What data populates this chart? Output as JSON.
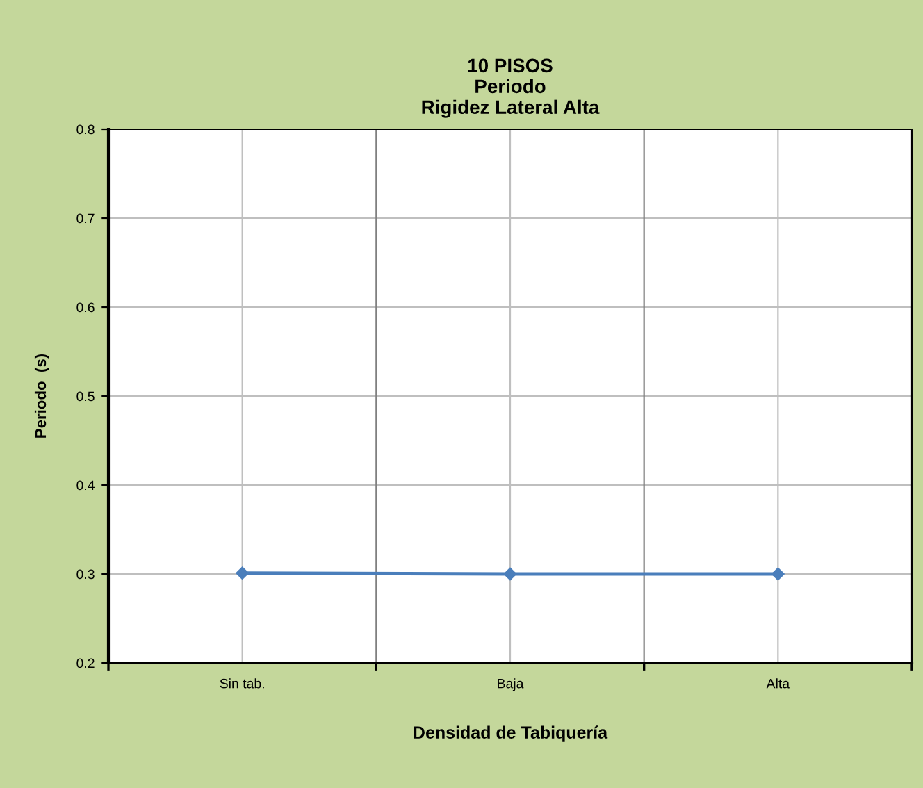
{
  "chart_data": {
    "type": "line",
    "title": "10 PISOS\nPeriodo\nRigidez Lateral Alta",
    "xlabel": "Densidad de Tabiquería",
    "ylabel": "Periodo  (s)",
    "categories": [
      "Sin tab.",
      "Baja",
      "Alta"
    ],
    "series": [
      {
        "color": "#4a7ebb",
        "values": [
          0.301,
          0.3,
          0.3
        ]
      }
    ],
    "ylim": [
      0.2,
      0.8
    ],
    "yticks": [
      0.2,
      0.3,
      0.4,
      0.5,
      0.6,
      0.7,
      0.8
    ],
    "grid": true,
    "marker": "diamond",
    "line_style": "solid"
  }
}
